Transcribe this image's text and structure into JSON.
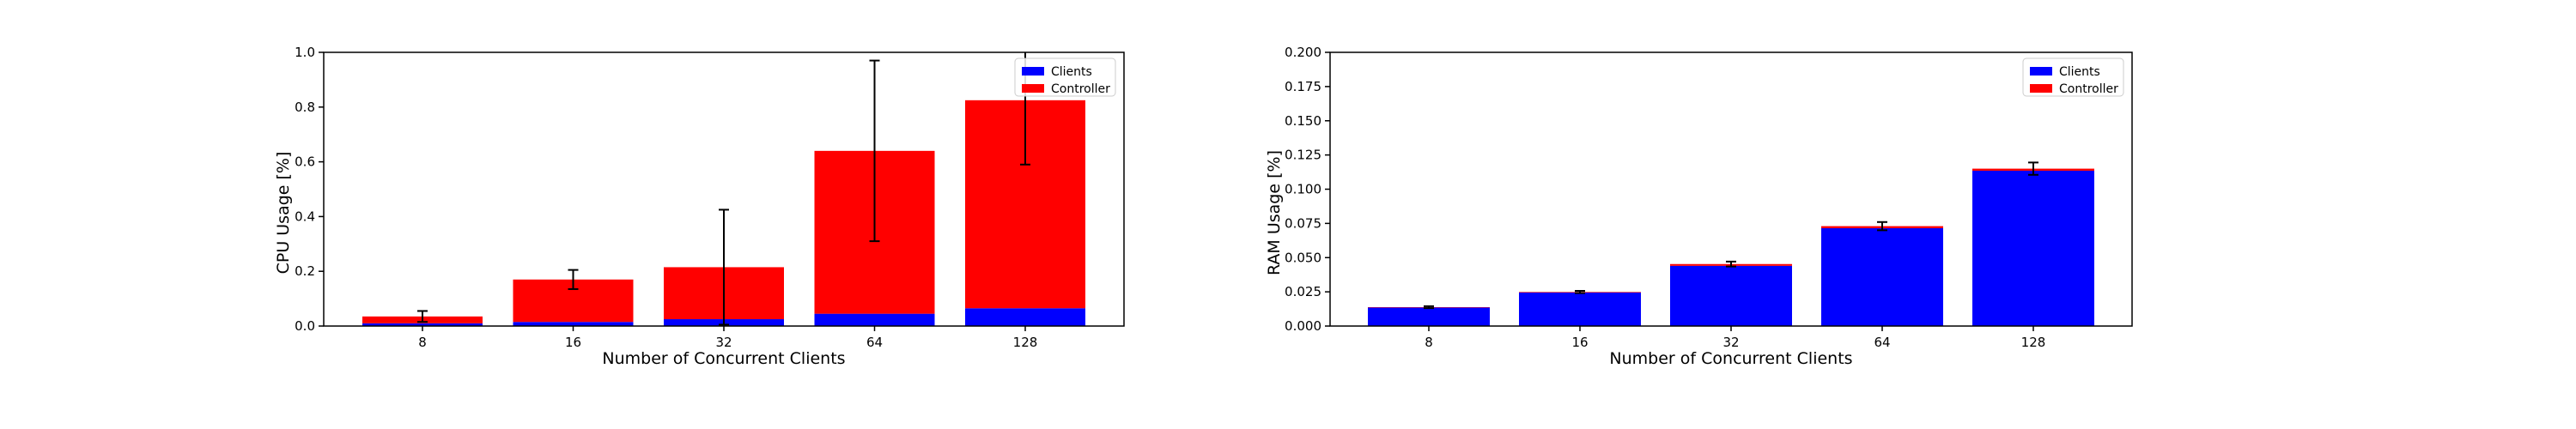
{
  "charts": [
    {
      "id": "cpu",
      "chart_data": {
        "type": "bar",
        "stacked": true,
        "categories": [
          "8",
          "16",
          "32",
          "64",
          "128"
        ],
        "xlabel": "Number of Concurrent Clients",
        "ylabel": "CPU Usage [%]",
        "ylim": [
          0,
          1.0
        ],
        "yticks": [
          "0.0",
          "0.2",
          "0.4",
          "0.6",
          "0.8",
          "1.0"
        ],
        "series": [
          {
            "name": "Clients",
            "color": "#0000ff",
            "values": [
              0.01,
              0.015,
              0.025,
              0.045,
              0.065
            ]
          },
          {
            "name": "Controller",
            "color": "#ff0000",
            "values": [
              0.025,
              0.155,
              0.19,
              0.595,
              0.76
            ]
          }
        ],
        "error_bars": {
          "center": [
            0.035,
            0.17,
            0.215,
            0.64,
            0.825
          ],
          "half_width": [
            0.02,
            0.035,
            0.21,
            0.33,
            0.235
          ]
        },
        "legend_position": "top-right",
        "grid": false
      }
    },
    {
      "id": "ram",
      "chart_data": {
        "type": "bar",
        "stacked": true,
        "categories": [
          "8",
          "16",
          "32",
          "64",
          "128"
        ],
        "xlabel": "Number of Concurrent Clients",
        "ylabel": "RAM Usage [%]",
        "ylim": [
          0,
          0.2
        ],
        "yticks": [
          "0.000",
          "0.025",
          "0.050",
          "0.075",
          "0.100",
          "0.125",
          "0.150",
          "0.175",
          "0.200"
        ],
        "series": [
          {
            "name": "Clients",
            "color": "#0000ff",
            "values": [
              0.0135,
              0.0245,
              0.044,
              0.0715,
              0.1135
            ]
          },
          {
            "name": "Controller",
            "color": "#ff0000",
            "values": [
              0.0003,
              0.0004,
              0.0013,
              0.0015,
              0.0015
            ]
          }
        ],
        "error_bars": {
          "center": [
            0.0138,
            0.0249,
            0.0453,
            0.073,
            0.115
          ],
          "half_width": [
            0.0007,
            0.0008,
            0.0018,
            0.003,
            0.0045
          ]
        },
        "legend_position": "top-right",
        "grid": false
      }
    }
  ]
}
